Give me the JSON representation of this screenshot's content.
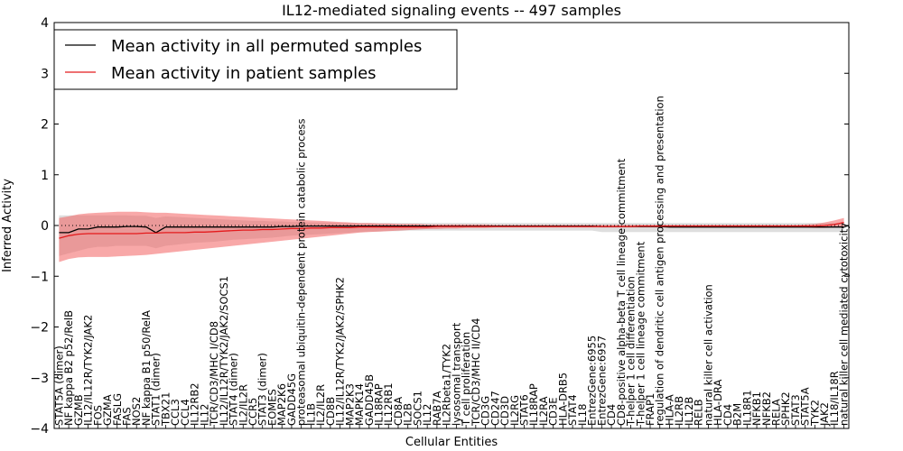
{
  "chart_data": {
    "type": "line",
    "title": "IL12-mediated signaling events -- 497 samples",
    "xlabel": "Cellular Entities",
    "ylabel": "Inferred Activity",
    "ylim": [
      -4,
      4
    ],
    "yticks": [
      -4,
      -3,
      -2,
      -1,
      0,
      1,
      2,
      3,
      4
    ],
    "ytick_labels": [
      "−4",
      "−3",
      "−2",
      "−1",
      "0",
      "1",
      "2",
      "3",
      "4"
    ],
    "legend": {
      "position": "top-left",
      "entries": [
        "Mean activity in all permuted samples",
        "Mean activity in patient samples"
      ]
    },
    "categories": [
      "STAT5A (dimer)",
      "NF kappa B2 p52/RelB",
      "GZMB",
      "IL12/IL12R/TYK2/JAK2",
      "FOS",
      "GZMA",
      "FASLG",
      "FAS",
      "NOS2",
      "NF kappa B1 p50/RelA",
      "STAT1 (dimer)",
      "TBX21",
      "CCL3",
      "CCL4",
      "IL12RB2",
      "IL12",
      "TCR/CD3/MHC I/CD8",
      "IL12/IL12R/TYK2/JAK2/SOCS1",
      "STAT4 (dimer)",
      "IL2/IL2R",
      "CCR5",
      "STAT3 (dimer)",
      "EOMES",
      "MAP2K6",
      "GADD45G",
      "proteasomal ubiquitin-dependent protein catabolic process",
      "IL1B",
      "IL2/IL2R",
      "CD8B",
      "IL12/IL12R/TYK2/JAK2/SPHK2",
      "MAP2K3",
      "MAPK14",
      "GADD45B",
      "IL18RAP",
      "IL12RB1",
      "CD8A",
      "IL2B",
      "SOCS1",
      "IL12",
      "RAB7A",
      "IL2Rbeta1/TYK2",
      "lysosomal transport",
      "T cell proliferation",
      "TCR/CD3/MHC II/CD4",
      "CD3G",
      "CD247",
      "CD3D",
      "IL2RG",
      "STAT6",
      "IL18RAP",
      "IL2RA",
      "CD3E",
      "HLA-DRB5",
      "STAT4",
      "IL18",
      "EntrezGene:6955",
      "EntrezGene:6957",
      "CD4",
      "CD8-positive alpha-beta T cell lineage commitment",
      "T-helper 1 cell differentiation",
      "T-helper 1 cell lineage commitment",
      "FRAP1",
      "regulation of dendritic cell antigen processing and presentation",
      "HLA-A",
      "IL2RB",
      "IL12B",
      "RELB",
      "natural killer cell activation",
      "HLA-DRA",
      "CD4",
      "B2M",
      "IL18R1",
      "NFKB1",
      "NFKB2",
      "RELA",
      "SPHK2",
      "STAT3",
      "STAT5A",
      "TYK2",
      "JAK2",
      "IL18/IL18R",
      "natural killer cell mediated cytotoxicity"
    ],
    "series": [
      {
        "name": "Mean activity in all permuted samples",
        "color": "#000000",
        "values": [
          -0.14,
          -0.14,
          -0.07,
          -0.07,
          -0.03,
          -0.03,
          -0.03,
          -0.02,
          -0.02,
          -0.03,
          -0.14,
          -0.03,
          -0.03,
          -0.03,
          -0.03,
          -0.03,
          -0.03,
          -0.03,
          -0.03,
          -0.03,
          -0.03,
          -0.03,
          -0.03,
          -0.02,
          -0.02,
          -0.01,
          -0.01,
          -0.01,
          -0.01,
          -0.01,
          -0.01,
          -0.01,
          -0.01,
          -0.01,
          -0.01,
          -0.01,
          -0.01,
          -0.01,
          -0.01,
          -0.01,
          -0.01,
          -0.01,
          -0.01,
          -0.01,
          -0.01,
          -0.01,
          -0.01,
          -0.01,
          -0.01,
          -0.01,
          -0.01,
          -0.01,
          -0.01,
          -0.01,
          -0.01,
          -0.01,
          -0.02,
          -0.02,
          -0.02,
          -0.02,
          -0.02,
          -0.02,
          -0.02,
          -0.03,
          -0.03,
          -0.03,
          -0.03,
          -0.03,
          -0.03,
          -0.03,
          -0.03,
          -0.03,
          -0.03,
          -0.03,
          -0.03,
          -0.03,
          -0.03,
          -0.03,
          -0.03,
          -0.03,
          -0.03,
          -0.03
        ],
        "lower": [
          -0.6,
          -0.55,
          -0.5,
          -0.45,
          -0.42,
          -0.42,
          -0.4,
          -0.4,
          -0.4,
          -0.4,
          -0.45,
          -0.4,
          -0.38,
          -0.36,
          -0.34,
          -0.33,
          -0.32,
          -0.3,
          -0.28,
          -0.27,
          -0.26,
          -0.25,
          -0.24,
          -0.22,
          -0.2,
          -0.19,
          -0.18,
          -0.17,
          -0.16,
          -0.15,
          -0.14,
          -0.13,
          -0.12,
          -0.12,
          -0.11,
          -0.11,
          -0.1,
          -0.1,
          -0.1,
          -0.1,
          -0.1,
          -0.1,
          -0.1,
          -0.1,
          -0.1,
          -0.1,
          -0.1,
          -0.1,
          -0.1,
          -0.1,
          -0.1,
          -0.1,
          -0.1,
          -0.1,
          -0.1,
          -0.1,
          -0.13,
          -0.13,
          -0.13,
          -0.13,
          -0.13,
          -0.13,
          -0.13,
          -0.13,
          -0.13,
          -0.13,
          -0.13,
          -0.13,
          -0.13,
          -0.13,
          -0.13,
          -0.13,
          -0.13,
          -0.13,
          -0.13,
          -0.13,
          -0.13,
          -0.13,
          -0.13,
          -0.13,
          -0.13,
          -0.13
        ],
        "upper": [
          0.2,
          0.2,
          0.2,
          0.2,
          0.2,
          0.2,
          0.2,
          0.2,
          0.19,
          0.19,
          0.15,
          0.18,
          0.17,
          0.16,
          0.15,
          0.14,
          0.13,
          0.12,
          0.11,
          0.1,
          0.09,
          0.09,
          0.08,
          0.08,
          0.07,
          0.07,
          0.06,
          0.06,
          0.06,
          0.05,
          0.05,
          0.05,
          0.05,
          0.05,
          0.05,
          0.05,
          0.05,
          0.05,
          0.05,
          0.05,
          0.05,
          0.05,
          0.05,
          0.05,
          0.05,
          0.05,
          0.05,
          0.05,
          0.05,
          0.05,
          0.05,
          0.05,
          0.05,
          0.05,
          0.05,
          0.05,
          0.05,
          0.05,
          0.05,
          0.05,
          0.05,
          0.05,
          0.05,
          0.05,
          0.05,
          0.05,
          0.05,
          0.05,
          0.05,
          0.05,
          0.05,
          0.05,
          0.05,
          0.05,
          0.05,
          0.05,
          0.05,
          0.05,
          0.05,
          0.05,
          0.05,
          0.05
        ]
      },
      {
        "name": "Mean activity in patient samples",
        "color": "#e41a1c",
        "values": [
          -0.25,
          -0.2,
          -0.17,
          -0.16,
          -0.16,
          -0.16,
          -0.16,
          -0.16,
          -0.16,
          -0.15,
          -0.15,
          -0.14,
          -0.14,
          -0.14,
          -0.13,
          -0.13,
          -0.12,
          -0.11,
          -0.1,
          -0.09,
          -0.09,
          -0.08,
          -0.08,
          -0.07,
          -0.06,
          -0.06,
          -0.05,
          -0.05,
          -0.04,
          -0.04,
          -0.04,
          -0.03,
          -0.03,
          -0.03,
          -0.03,
          -0.03,
          -0.03,
          -0.03,
          -0.03,
          -0.02,
          -0.02,
          -0.02,
          -0.02,
          -0.02,
          -0.02,
          -0.02,
          -0.02,
          -0.02,
          -0.02,
          -0.02,
          -0.02,
          -0.02,
          -0.02,
          -0.02,
          -0.02,
          -0.02,
          -0.02,
          -0.02,
          -0.02,
          -0.02,
          -0.01,
          -0.01,
          -0.01,
          -0.01,
          -0.01,
          -0.01,
          -0.01,
          -0.01,
          -0.01,
          -0.01,
          -0.01,
          -0.01,
          -0.01,
          -0.01,
          -0.01,
          -0.01,
          -0.01,
          -0.01,
          -0.01,
          0.0,
          0.02,
          0.06
        ],
        "lower": [
          -0.72,
          -0.66,
          -0.63,
          -0.62,
          -0.62,
          -0.62,
          -0.61,
          -0.6,
          -0.59,
          -0.58,
          -0.56,
          -0.54,
          -0.52,
          -0.5,
          -0.48,
          -0.46,
          -0.44,
          -0.42,
          -0.4,
          -0.38,
          -0.36,
          -0.34,
          -0.32,
          -0.3,
          -0.28,
          -0.26,
          -0.24,
          -0.22,
          -0.2,
          -0.18,
          -0.16,
          -0.14,
          -0.13,
          -0.12,
          -0.11,
          -0.1,
          -0.09,
          -0.08,
          -0.07,
          -0.07,
          -0.06,
          -0.06,
          -0.05,
          -0.05,
          -0.05,
          -0.04,
          -0.04,
          -0.04,
          -0.04,
          -0.04,
          -0.04,
          -0.04,
          -0.04,
          -0.04,
          -0.04,
          -0.04,
          -0.04,
          -0.04,
          -0.04,
          -0.04,
          -0.04,
          -0.04,
          -0.04,
          -0.04,
          -0.04,
          -0.04,
          -0.04,
          -0.04,
          -0.04,
          -0.04,
          -0.04,
          -0.04,
          -0.04,
          -0.04,
          -0.04,
          -0.04,
          -0.04,
          -0.04,
          -0.05,
          -0.05,
          -0.04,
          -0.02
        ],
        "upper": [
          0.15,
          0.18,
          0.22,
          0.24,
          0.25,
          0.26,
          0.27,
          0.27,
          0.27,
          0.26,
          0.25,
          0.25,
          0.24,
          0.23,
          0.22,
          0.21,
          0.2,
          0.19,
          0.18,
          0.17,
          0.16,
          0.15,
          0.14,
          0.13,
          0.12,
          0.11,
          0.1,
          0.09,
          0.08,
          0.07,
          0.06,
          0.05,
          0.05,
          0.04,
          0.04,
          0.03,
          0.03,
          0.03,
          0.02,
          0.02,
          0.02,
          0.02,
          0.02,
          0.02,
          0.02,
          0.01,
          0.01,
          0.01,
          0.01,
          0.01,
          0.01,
          0.01,
          0.01,
          0.01,
          0.01,
          0.01,
          0.01,
          0.01,
          0.01,
          0.01,
          0.01,
          0.01,
          0.01,
          0.01,
          0.01,
          0.01,
          0.01,
          0.01,
          0.01,
          0.01,
          0.01,
          0.01,
          0.01,
          0.01,
          0.01,
          0.01,
          0.01,
          0.02,
          0.03,
          0.06,
          0.1,
          0.15
        ]
      }
    ]
  }
}
